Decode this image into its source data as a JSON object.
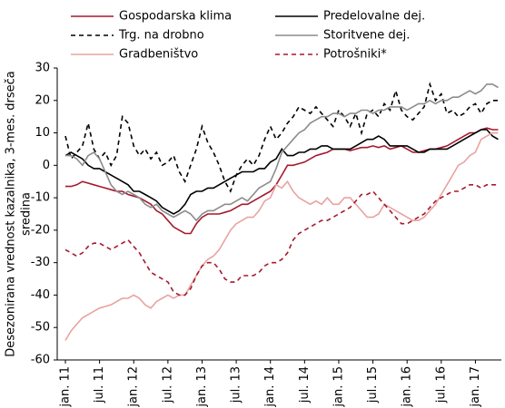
{
  "chart_data": {
    "type": "line",
    "ylabel": [
      "Desezonirana vrednost kazalnika, 3-mes. drseča",
      "sredina"
    ],
    "categories": [
      "jan. 11",
      null,
      null,
      null,
      null,
      null,
      "jul. 11",
      null,
      null,
      null,
      null,
      null,
      "jan. 12",
      null,
      null,
      null,
      null,
      null,
      "jul. 12",
      null,
      null,
      null,
      null,
      null,
      "jan. 13",
      null,
      null,
      null,
      null,
      null,
      "jul. 13",
      null,
      null,
      null,
      null,
      null,
      "jan. 14",
      null,
      null,
      null,
      null,
      null,
      "jul. 14",
      null,
      null,
      null,
      null,
      null,
      "jan. 15",
      null,
      null,
      null,
      null,
      null,
      "jul. 15",
      null,
      null,
      null,
      null,
      null,
      "jan. 16",
      null,
      null,
      null,
      null,
      null,
      "jul. 16",
      null,
      null,
      null,
      null,
      null,
      "jan. 17",
      null,
      null,
      null,
      null
    ],
    "ylim": [
      -60,
      30
    ],
    "yticks": [
      -60,
      -50,
      -40,
      -30,
      -20,
      -10,
      0,
      10,
      20,
      30
    ],
    "series": [
      {
        "name": "Gospodarska klima",
        "color": "#a6192e",
        "dashed": false,
        "values": [
          -6.5,
          -6.5,
          -6,
          -5,
          -5.5,
          -6,
          -6.5,
          -7,
          -7.5,
          -8,
          -8,
          -9,
          -9.5,
          -10,
          -11,
          -12,
          -14,
          -15,
          -17,
          -19,
          -20,
          -21,
          -21,
          -18,
          -16,
          -15,
          -15,
          -15,
          -14.5,
          -14,
          -13,
          -12,
          -12,
          -11,
          -10,
          -9,
          -8,
          -6,
          -3,
          0,
          0,
          0.5,
          1,
          2,
          3,
          3.5,
          4,
          5,
          5,
          5,
          4.5,
          5,
          5.5,
          5.5,
          6,
          5.5,
          6,
          5,
          5.5,
          6,
          5,
          4,
          4,
          4.5,
          5,
          5,
          5.5,
          6,
          7,
          8,
          9,
          10,
          10,
          11,
          11.5,
          11,
          11
        ]
      },
      {
        "name": "Predelovalne dej.",
        "color": "#000000",
        "dashed": false,
        "values": [
          3,
          4,
          3,
          2,
          0,
          -1,
          -1,
          -2,
          -3,
          -4,
          -5,
          -6,
          -8,
          -8,
          -9,
          -10,
          -11,
          -13,
          -14,
          -15,
          -14,
          -12,
          -9,
          -8,
          -8,
          -7,
          -7,
          -6,
          -5,
          -4,
          -3,
          -2,
          -2,
          -2,
          -1,
          -1,
          1,
          2,
          5,
          3,
          3,
          4,
          4,
          5,
          5,
          6,
          6,
          5,
          5,
          5,
          5,
          6,
          7,
          8,
          8,
          9,
          8,
          6,
          6,
          6,
          6,
          5,
          4,
          4,
          5,
          5,
          5,
          5,
          6,
          7,
          8,
          9,
          10,
          11,
          11,
          9,
          8
        ]
      },
      {
        "name": "Trg. na drobno",
        "color": "#000000",
        "dashed": true,
        "values": [
          9,
          2,
          4,
          6,
          13,
          5,
          2,
          4,
          0,
          3,
          15,
          13,
          6,
          3,
          5,
          2,
          4,
          0,
          1,
          3,
          -2,
          -5,
          0,
          5,
          12,
          7,
          4,
          0,
          -5,
          -8,
          -3,
          0,
          2,
          0,
          3,
          8,
          12,
          8,
          10,
          13,
          15,
          18,
          17,
          16,
          18,
          16,
          14,
          12,
          17,
          15,
          12,
          16,
          10,
          16,
          17,
          15,
          19,
          17,
          23,
          17,
          15,
          14,
          16,
          18,
          25,
          20,
          22,
          16,
          17,
          15,
          16,
          18,
          19,
          16,
          19,
          20,
          20
        ]
      },
      {
        "name": "Storitvene dej.",
        "color": "#8c8c8c",
        "dashed": false,
        "values": [
          3,
          3,
          2,
          0,
          3,
          4,
          2,
          -2,
          -6,
          -8,
          -9,
          -8,
          -9,
          -10,
          -12,
          -13,
          -12,
          -14,
          -15,
          -16,
          -15,
          -14,
          -15,
          -17,
          -15,
          -14,
          -14,
          -13,
          -12,
          -12,
          -11,
          -10,
          -11,
          -9,
          -7,
          -6,
          -5,
          -1,
          4,
          6,
          8,
          10,
          11,
          13,
          14,
          15,
          15,
          16,
          16,
          15,
          16,
          16,
          17,
          17,
          16,
          17,
          17,
          18,
          18,
          18,
          17,
          18,
          19,
          19,
          20,
          19,
          20,
          20,
          21,
          21,
          22,
          23,
          22,
          23,
          25,
          25,
          24
        ]
      },
      {
        "name": "Gradbeništvo",
        "color": "#e8a3a0",
        "dashed": false,
        "values": [
          -54,
          -51,
          -49,
          -47,
          -46,
          -45,
          -44,
          -43.5,
          -43,
          -42,
          -41,
          -41,
          -40,
          -41,
          -43,
          -44,
          -42,
          -41,
          -40,
          -41,
          -40,
          -40,
          -37,
          -34,
          -31,
          -29,
          -28,
          -26,
          -23,
          -20,
          -18,
          -17,
          -16,
          -16,
          -14,
          -11,
          -10,
          -6,
          -7,
          -5,
          -8,
          -10,
          -11,
          -12,
          -11,
          -12,
          -10,
          -12,
          -12,
          -10,
          -10,
          -12,
          -14,
          -16,
          -16,
          -15,
          -12,
          -13,
          -14,
          -15,
          -16,
          -17,
          -17,
          -16,
          -14,
          -12,
          -9,
          -6,
          -3,
          0,
          1,
          3,
          4,
          8,
          9,
          10,
          10
        ]
      },
      {
        "name": "Potrošniki*",
        "color": "#a6192e",
        "dashed": true,
        "values": [
          -26,
          -27,
          -28,
          -27,
          -25,
          -24,
          -24,
          -25,
          -26,
          -25,
          -24,
          -23,
          -25,
          -27,
          -30,
          -33,
          -34,
          -35,
          -36,
          -39,
          -40,
          -40,
          -38,
          -34,
          -31,
          -30,
          -30,
          -32,
          -35,
          -36,
          -36,
          -34,
          -34,
          -34,
          -33,
          -31,
          -30,
          -30,
          -29,
          -27,
          -23,
          -21,
          -20,
          -19,
          -18,
          -17,
          -17,
          -16,
          -15,
          -14,
          -13,
          -11,
          -9,
          -9,
          -8,
          -10,
          -12,
          -14,
          -16,
          -18,
          -18,
          -17,
          -16,
          -15,
          -13,
          -11,
          -10,
          -9,
          -8,
          -8,
          -7,
          -6,
          -6,
          -7,
          -6,
          -6,
          -6
        ]
      }
    ]
  }
}
